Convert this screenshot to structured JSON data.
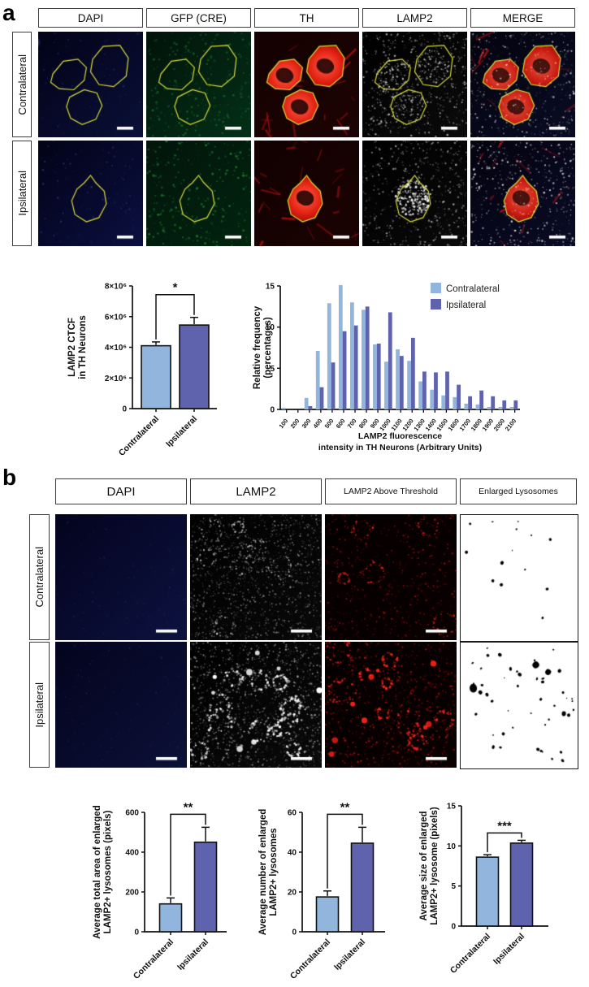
{
  "panel_a": {
    "label": "a",
    "column_headers": [
      "DAPI",
      "GFP (CRE)",
      "TH",
      "LAMP2",
      "MERGE"
    ],
    "row_labels": [
      "Contralateral",
      "Ipsilateral"
    ]
  },
  "panel_b": {
    "label": "b",
    "column_headers": [
      "DAPI",
      "LAMP2",
      "LAMP2 Above Threshold",
      "Enlarged Lysosomes"
    ],
    "row_labels": [
      "Contralateral",
      "Ipsilateral"
    ]
  },
  "colors": {
    "contralateral": "#92B5DE",
    "ipsilateral": "#5F63AE",
    "axis": "#111111",
    "outline_yellow": "#D9DC3A"
  },
  "chart_data": [
    {
      "id": "lamp2_ctcf",
      "type": "bar",
      "categories": [
        "Contralateral",
        "Ipsilateral"
      ],
      "values": [
        4100000,
        5450000
      ],
      "errors": [
        250000,
        500000
      ],
      "ylabel": "LAMP2 CTCF\nin TH Neurons",
      "ylim": [
        0,
        8000000
      ],
      "ytick_values": [
        0,
        2000000,
        4000000,
        6000000,
        8000000
      ],
      "ytick_labels": [
        "0",
        "2×10⁶",
        "4×10⁶",
        "6×10⁶",
        "8×10⁶"
      ],
      "significance": "*",
      "grid": false
    },
    {
      "id": "lamp2_frequency_histogram",
      "type": "grouped-bar",
      "categories": [
        100,
        200,
        300,
        400,
        500,
        600,
        700,
        800,
        900,
        1000,
        1100,
        1200,
        1300,
        1400,
        1500,
        1600,
        1700,
        1800,
        1900,
        2000,
        2100
      ],
      "series": [
        {
          "name": "Contralateral",
          "values": [
            0.2,
            0,
            1.4,
            7.1,
            12.9,
            15.1,
            13,
            12.1,
            7.9,
            5.8,
            7.3,
            5.9,
            3.4,
            2.4,
            1.7,
            1.5,
            0.7,
            0.6,
            0.3,
            0.3,
            0.3
          ]
        },
        {
          "name": "Ipsilateral",
          "values": [
            0,
            0,
            0.4,
            2.7,
            5.7,
            9.5,
            10.2,
            12.5,
            8,
            11.8,
            6.5,
            8.7,
            4.6,
            4.5,
            4.6,
            3,
            1.6,
            2.3,
            1.6,
            1.1,
            1.1
          ]
        }
      ],
      "ylabel": "Relative frequency\n(percentages)",
      "xlabel": "LAMP2 fluorescence\nintensity in TH Neurons (Arbitrary Units)",
      "ylim": [
        0,
        15
      ],
      "ytick_values": [
        0,
        5,
        10,
        15
      ],
      "ytick_labels": [
        "0",
        "5",
        "10",
        "15"
      ],
      "legend_position": "top-right",
      "grid": false
    },
    {
      "id": "avg_total_area",
      "type": "bar",
      "categories": [
        "Contralateral",
        "Ipsilateral"
      ],
      "values": [
        140,
        450
      ],
      "errors": [
        30,
        75
      ],
      "ylabel": "Average total area of enlarged\nLAMP2+ lysosomes (pixels)",
      "ylim": [
        0,
        600
      ],
      "ytick_values": [
        0,
        200,
        400,
        600
      ],
      "ytick_labels": [
        "0",
        "200",
        "400",
        "600"
      ],
      "significance": "**",
      "grid": false
    },
    {
      "id": "avg_number",
      "type": "bar",
      "categories": [
        "Contralateral",
        "Ipsilateral"
      ],
      "values": [
        17.5,
        44.5
      ],
      "errors": [
        3,
        8
      ],
      "ylabel": "Average number of enlarged\nLAMP2+ lysosomes",
      "ylim": [
        0,
        60
      ],
      "ytick_values": [
        0,
        20,
        40,
        60
      ],
      "ytick_labels": [
        "0",
        "20",
        "40",
        "60"
      ],
      "significance": "**",
      "grid": false
    },
    {
      "id": "avg_size",
      "type": "bar",
      "categories": [
        "Contralateral",
        "Ipsilateral"
      ],
      "values": [
        8.6,
        10.35
      ],
      "errors": [
        0.3,
        0.35
      ],
      "ylabel": "Average size of enlarged\nLAMP2+ lysosome (pixels)",
      "ylim": [
        0,
        15
      ],
      "ytick_values": [
        0,
        5,
        10,
        15
      ],
      "ytick_labels": [
        "0",
        "5",
        "10",
        "15"
      ],
      "significance": "***",
      "grid": false
    }
  ]
}
